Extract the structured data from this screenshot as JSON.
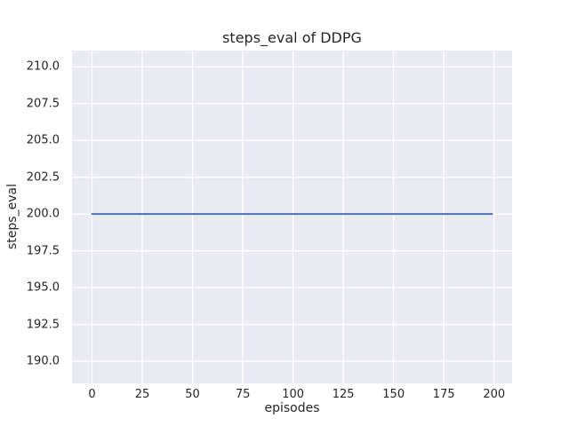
{
  "figure": {
    "background": "#ffffff",
    "text_color": "#262626"
  },
  "chart_data": {
    "type": "line",
    "title": "steps_eval of DDPG",
    "xlabel": "episodes",
    "ylabel": "steps_eval",
    "xlim": [
      -9.95,
      208.95
    ],
    "ylim": [
      188.5,
      211.1
    ],
    "grid": true,
    "legend": "none",
    "plot_background": "#eaeaf2",
    "gridline_color": "#ffffff",
    "xticks": {
      "values": [
        0,
        25,
        50,
        75,
        100,
        125,
        150,
        175,
        200
      ],
      "labels": [
        "0",
        "25",
        "50",
        "75",
        "100",
        "125",
        "150",
        "175",
        "200"
      ]
    },
    "yticks": {
      "values": [
        190.0,
        192.5,
        195.0,
        197.5,
        200.0,
        202.5,
        205.0,
        207.5,
        210.0
      ],
      "labels": [
        "190.0",
        "192.5",
        "195.0",
        "197.5",
        "200.0",
        "202.5",
        "205.0",
        "207.5",
        "210.0"
      ]
    },
    "series": [
      {
        "name": "steps_eval",
        "color": "#4c72b0",
        "line_width": 2,
        "x": [
          0,
          199
        ],
        "y": [
          200.0,
          200.0
        ]
      }
    ]
  }
}
